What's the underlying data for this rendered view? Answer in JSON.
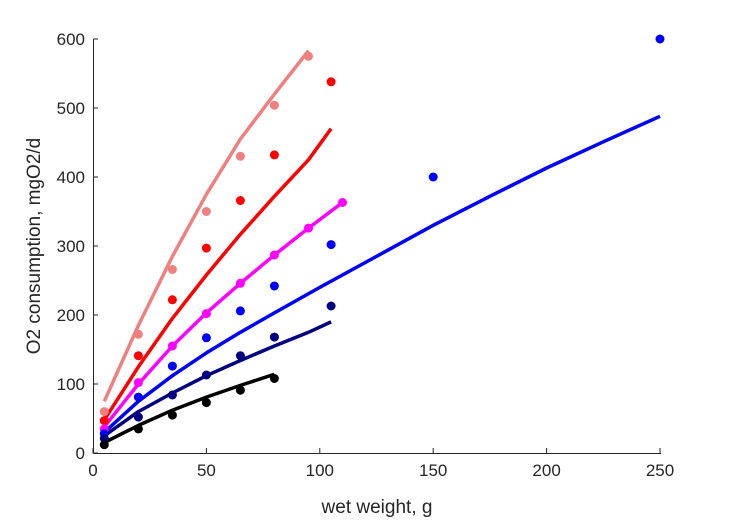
{
  "chart_data": {
    "type": "scatter",
    "xlabel": "wet weight, g",
    "ylabel": "O2 consumption, mgO2/d",
    "xlim": [
      0,
      250
    ],
    "ylim": [
      0,
      600
    ],
    "xticks": [
      0,
      50,
      100,
      150,
      200,
      250
    ],
    "yticks": [
      0,
      100,
      200,
      300,
      400,
      500,
      600
    ],
    "grid": false,
    "legend": "none",
    "series": [
      {
        "color": "#f08080",
        "points": {
          "x": [
            5,
            20,
            35,
            50,
            65,
            80,
            95
          ],
          "y": [
            60,
            172,
            266,
            350,
            430,
            504,
            575
          ]
        },
        "fit": {
          "x": [
            5,
            20,
            35,
            50,
            65,
            80,
            95
          ],
          "y": [
            75,
            185,
            285,
            375,
            455,
            520,
            583
          ]
        }
      },
      {
        "color": "#ff0000",
        "points": {
          "x": [
            5,
            20,
            35,
            50,
            65,
            80,
            105
          ],
          "y": [
            47,
            141,
            222,
            297,
            366,
            432,
            538
          ]
        },
        "fit": {
          "x": [
            5,
            20,
            35,
            50,
            65,
            80,
            95,
            105
          ],
          "y": [
            48,
            125,
            195,
            258,
            317,
            372,
            425,
            470
          ]
        }
      },
      {
        "color": "#ff00ff",
        "points": {
          "x": [
            5,
            20,
            35,
            50,
            65,
            80,
            95,
            110
          ],
          "y": [
            35,
            102,
            155,
            202,
            246,
            287,
            326,
            363
          ]
        },
        "fit": {
          "x": [
            5,
            20,
            35,
            50,
            65,
            80,
            95,
            110
          ],
          "y": [
            38,
            100,
            155,
            203,
            246,
            287,
            326,
            363
          ]
        }
      },
      {
        "color": "#0000ff",
        "points": {
          "x": [
            5,
            20,
            35,
            50,
            65,
            80,
            105,
            150,
            250
          ],
          "y": [
            28,
            81,
            126,
            167,
            206,
            242,
            302,
            400,
            600
          ]
        },
        "fit": {
          "x": [
            5,
            20,
            35,
            50,
            65,
            80,
            100,
            125,
            150,
            175,
            200,
            225,
            250
          ],
          "y": [
            30,
            75,
            112,
            145,
            175,
            203,
            240,
            285,
            330,
            372,
            413,
            451,
            488
          ]
        }
      },
      {
        "color": "#000080",
        "points": {
          "x": [
            5,
            20,
            35,
            50,
            65,
            80,
            105
          ],
          "y": [
            21,
            52,
            84,
            113,
            141,
            168,
            213
          ]
        },
        "fit": {
          "x": [
            5,
            20,
            35,
            50,
            65,
            80,
            95,
            105
          ],
          "y": [
            25,
            60,
            87,
            112,
            134,
            155,
            175,
            190
          ]
        }
      },
      {
        "color": "#000000",
        "points": {
          "x": [
            5,
            20,
            35,
            50,
            65,
            80
          ],
          "y": [
            12,
            35,
            55,
            73,
            91,
            108
          ]
        },
        "fit": {
          "x": [
            5,
            20,
            35,
            50,
            65,
            80
          ],
          "y": [
            15,
            40,
            62,
            81,
            98,
            114
          ]
        }
      }
    ]
  }
}
